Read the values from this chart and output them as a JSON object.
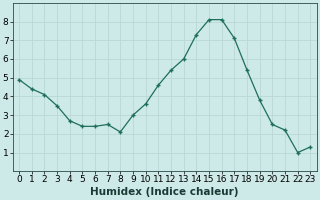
{
  "x": [
    0,
    1,
    2,
    3,
    4,
    5,
    6,
    7,
    8,
    9,
    10,
    11,
    12,
    13,
    14,
    15,
    16,
    17,
    18,
    19,
    20,
    21,
    22,
    23
  ],
  "y": [
    4.9,
    4.4,
    4.1,
    3.5,
    2.7,
    2.4,
    2.4,
    2.5,
    2.1,
    3.0,
    3.6,
    4.6,
    5.4,
    6.0,
    7.3,
    8.1,
    8.1,
    7.1,
    5.4,
    3.8,
    2.5,
    2.2,
    1.0,
    1.3
  ],
  "xlabel": "Humidex (Indice chaleur)",
  "line_color": "#1e6e5e",
  "marker": "+",
  "bg_color": "#ceeae8",
  "grid_color": "#b8d8d5",
  "ylim": [
    0,
    9
  ],
  "xlim": [
    -0.5,
    23.5
  ],
  "yticks": [
    1,
    2,
    3,
    4,
    5,
    6,
    7,
    8
  ],
  "xticks": [
    0,
    1,
    2,
    3,
    4,
    5,
    6,
    7,
    8,
    9,
    10,
    11,
    12,
    13,
    14,
    15,
    16,
    17,
    18,
    19,
    20,
    21,
    22,
    23
  ],
  "tick_fontsize": 6.5,
  "xlabel_fontsize": 7.5
}
